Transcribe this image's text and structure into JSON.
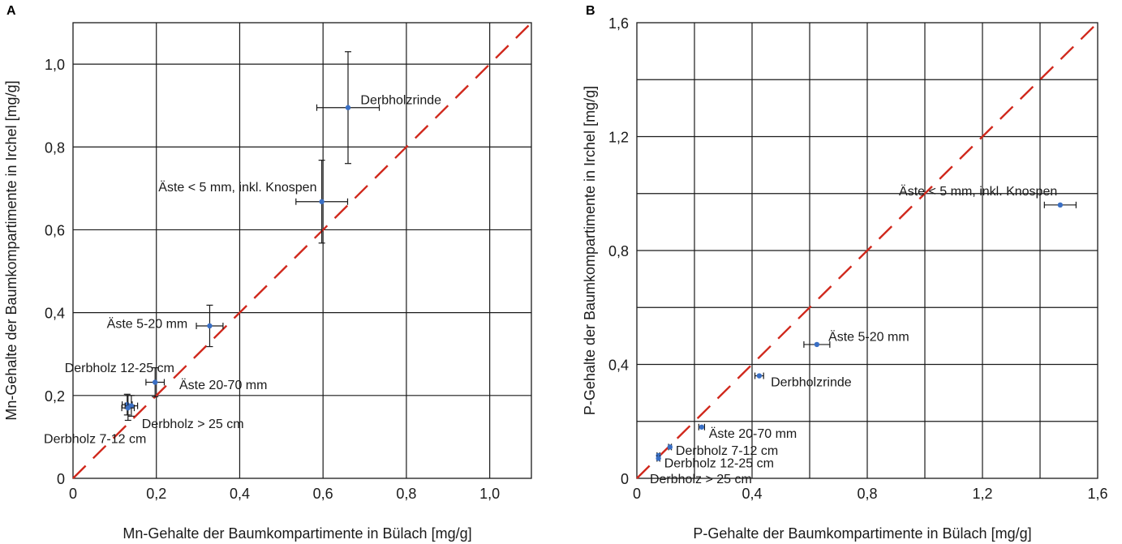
{
  "chart_data": [
    {
      "type": "scatter",
      "panel": "A",
      "xlabel": "Mn-Gehalte der Baumkompartimente in Bülach [mg/g]",
      "ylabel": "Mn-Gehalte der Baumkompartimente in Irchel [mg/g]",
      "xlim": [
        0,
        1.1
      ],
      "ylim": [
        0,
        1.1
      ],
      "xticks": [
        0,
        0.2,
        0.4,
        0.6,
        0.8,
        1.0
      ],
      "xtick_labels": [
        "0",
        "0,2",
        "0,4",
        "0,6",
        "0,8",
        "1,0"
      ],
      "yticks": [
        0,
        0.2,
        0.4,
        0.6,
        0.8,
        1.0
      ],
      "ytick_labels": [
        "0",
        "0,2",
        "0,4",
        "0,6",
        "0,8",
        "1,0"
      ],
      "grid": true,
      "reference_line": {
        "style": "dashed",
        "color": "#d0281c",
        "x": [
          0,
          1.1
        ],
        "y": [
          0,
          1.1
        ]
      },
      "points": [
        {
          "label": "Derbholzrinde",
          "x": 0.66,
          "y": 0.895,
          "xerr": 0.075,
          "yerr": 0.135,
          "label_at": [
            0.69,
            0.915
          ],
          "anchor": "start"
        },
        {
          "label": "Äste < 5 mm, inkl. Knospen",
          "x": 0.597,
          "y": 0.668,
          "xerr": 0.062,
          "yerr": 0.1,
          "label_at": [
            0.585,
            0.705
          ],
          "anchor": "end"
        },
        {
          "label": "Äste 5-20 mm",
          "x": 0.328,
          "y": 0.368,
          "xerr": 0.032,
          "yerr": 0.05,
          "label_at": [
            0.275,
            0.375
          ],
          "anchor": "end"
        },
        {
          "label": "Derbholz 12-25 cm",
          "x": 0.13,
          "y": 0.178,
          "xerr": 0.012,
          "yerr": 0.025,
          "label_at": [
            -0.02,
            0.268
          ],
          "anchor": "start"
        },
        {
          "label": "Äste 20-70 mm",
          "x": 0.197,
          "y": 0.232,
          "xerr": 0.022,
          "yerr": 0.035,
          "label_at": [
            0.255,
            0.227
          ],
          "anchor": "start"
        },
        {
          "label": "Derbholz > 25 cm",
          "x": 0.14,
          "y": 0.175,
          "xerr": 0.015,
          "yerr": 0.025,
          "label_at": [
            0.165,
            0.133
          ],
          "anchor": "start"
        },
        {
          "label": "Derbholz 7-12 cm",
          "x": 0.132,
          "y": 0.17,
          "xerr": 0.015,
          "yerr": 0.03,
          "label_at": [
            -0.07,
            0.097
          ],
          "anchor": "start"
        }
      ]
    },
    {
      "type": "scatter",
      "panel": "B",
      "xlabel": "P-Gehalte der Baumkompartimente in Bülach [mg/g]",
      "ylabel": "P-Gehalte der Baumkompartimente in Irchel [mg/g]",
      "xlim": [
        0,
        1.6
      ],
      "ylim": [
        0,
        1.6
      ],
      "xticks": [
        0,
        0.4,
        0.8,
        1.2,
        1.6
      ],
      "xtick_labels": [
        "0",
        "0,4",
        "0,8",
        "1,2",
        "1,6"
      ],
      "yticks": [
        0,
        0.4,
        0.8,
        1.2,
        1.6
      ],
      "ytick_labels": [
        "0",
        "0,4",
        "0,8",
        "1,2",
        "1,6"
      ],
      "grid": true,
      "reference_line": {
        "style": "dashed",
        "color": "#d0281c",
        "x": [
          0,
          1.6
        ],
        "y": [
          0,
          1.6
        ]
      },
      "points": [
        {
          "label": "Äste < 5 mm, inkl. Knospen",
          "x": 1.47,
          "y": 0.96,
          "xerr": 0.055,
          "yerr": 0,
          "label_at": [
            0.91,
            1.01
          ],
          "anchor": "start"
        },
        {
          "label": "Äste 5-20 mm",
          "x": 0.625,
          "y": 0.47,
          "xerr": 0.045,
          "yerr": 0,
          "label_at": [
            0.665,
            0.5
          ],
          "anchor": "start"
        },
        {
          "label": "Derbholzrinde",
          "x": 0.425,
          "y": 0.36,
          "xerr": 0.015,
          "yerr": 0,
          "label_at": [
            0.465,
            0.34
          ],
          "anchor": "start"
        },
        {
          "label": "Äste 20-70 mm",
          "x": 0.225,
          "y": 0.18,
          "xerr": 0.01,
          "yerr": 0,
          "label_at": [
            0.25,
            0.16
          ],
          "anchor": "start"
        },
        {
          "label": "Derbholz 7-12 cm",
          "x": 0.115,
          "y": 0.11,
          "xerr": 0.005,
          "yerr": 0,
          "label_at": [
            0.135,
            0.1
          ],
          "anchor": "start"
        },
        {
          "label": "Derbholz 12-25 cm",
          "x": 0.075,
          "y": 0.08,
          "xerr": 0.005,
          "yerr": 0,
          "label_at": [
            0.095,
            0.055
          ],
          "anchor": "start"
        },
        {
          "label": "Derbholz > 25 cm",
          "x": 0.075,
          "y": 0.07,
          "xerr": 0.005,
          "yerr": 0,
          "label_at": [
            0.045,
            0.0
          ],
          "anchor": "start"
        }
      ]
    }
  ]
}
